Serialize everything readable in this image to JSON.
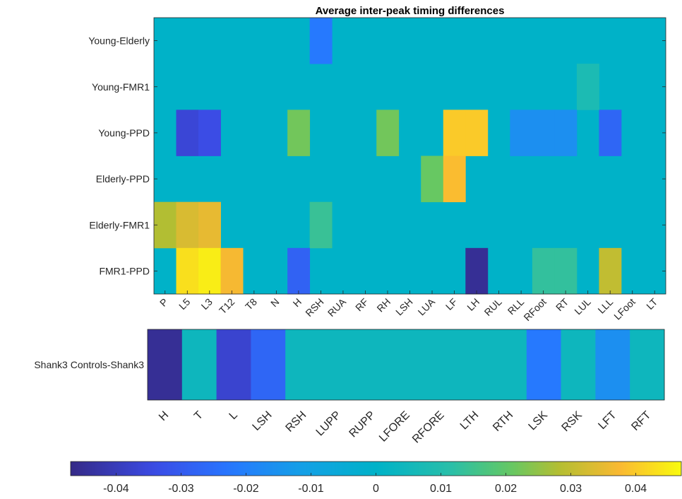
{
  "chart_data": [
    {
      "type": "heatmap",
      "title": "Average inter-peak timing differences",
      "rows": [
        "Young-Elderly",
        "Young-FMR1",
        "Young-PPD",
        "Elderly-PPD",
        "Elderly-FMR1",
        "FMR1-PPD"
      ],
      "columns": [
        "P",
        "L5",
        "L3",
        "T12",
        "T8",
        "N",
        "H",
        "RSH",
        "RUA",
        "RF",
        "RH",
        "LSH",
        "LUA",
        "LF",
        "LH",
        "RUL",
        "RLL",
        "RFoot",
        "RT",
        "LUL",
        "LLL",
        "LFoot",
        "LT"
      ],
      "values": [
        [
          0,
          0,
          0,
          0,
          0,
          0,
          0,
          -0.022,
          0,
          0,
          0,
          0,
          0,
          0,
          0,
          0,
          0,
          0,
          0,
          0,
          0,
          0,
          0
        ],
        [
          0,
          0,
          0,
          0,
          0,
          0,
          0,
          0,
          0,
          0,
          0,
          0,
          0,
          0,
          0,
          0,
          0,
          0,
          0,
          0.008,
          0,
          0,
          0
        ],
        [
          0,
          -0.036,
          -0.034,
          0,
          0,
          0,
          0.022,
          0,
          0,
          0,
          0.022,
          0,
          0,
          0.04,
          0.04,
          0,
          -0.016,
          -0.016,
          -0.016,
          0,
          -0.027,
          0,
          0
        ],
        [
          0,
          0,
          0,
          0,
          0,
          0,
          0,
          0,
          0,
          0,
          0,
          0,
          0.021,
          0.038,
          0,
          0,
          0,
          0,
          0,
          0,
          0,
          0,
          0
        ],
        [
          0.028,
          0.033,
          0.035,
          0,
          0,
          0,
          0,
          0.014,
          0,
          0,
          0,
          0,
          0,
          0,
          0,
          0,
          0,
          0,
          0,
          0,
          0,
          0,
          0
        ],
        [
          0,
          0.043,
          0.045,
          0.037,
          0,
          0,
          -0.028,
          0,
          0,
          0,
          0,
          0,
          0,
          0,
          -0.045,
          0,
          0,
          0.013,
          0.013,
          0,
          0.03,
          0,
          0
        ]
      ]
    },
    {
      "type": "heatmap",
      "rows": [
        "Shank3 Controls-Shank3"
      ],
      "columns": [
        "H",
        "T",
        "L",
        "LSH",
        "RSH",
        "LUPP",
        "RUPP",
        "LFORE",
        "RFORE",
        "LTH",
        "RTH",
        "LSK",
        "RSK",
        "LFT",
        "RFT"
      ],
      "values": [
        [
          -0.045,
          0.004,
          -0.037,
          -0.027,
          0.004,
          0.004,
          0.004,
          0.004,
          0.004,
          0.004,
          0.004,
          -0.022,
          0.004,
          -0.016,
          0.004
        ]
      ]
    },
    {
      "type": "colorbar",
      "range": [
        -0.047,
        0.047
      ],
      "ticks": [
        "-0.04",
        "-0.03",
        "-0.02",
        "-0.01",
        "0",
        "0.01",
        "0.02",
        "0.03",
        "0.04"
      ],
      "tick_values": [
        -0.04,
        -0.03,
        -0.02,
        -0.01,
        0,
        0.01,
        0.02,
        0.03,
        0.04
      ],
      "colormap": "parula"
    }
  ]
}
